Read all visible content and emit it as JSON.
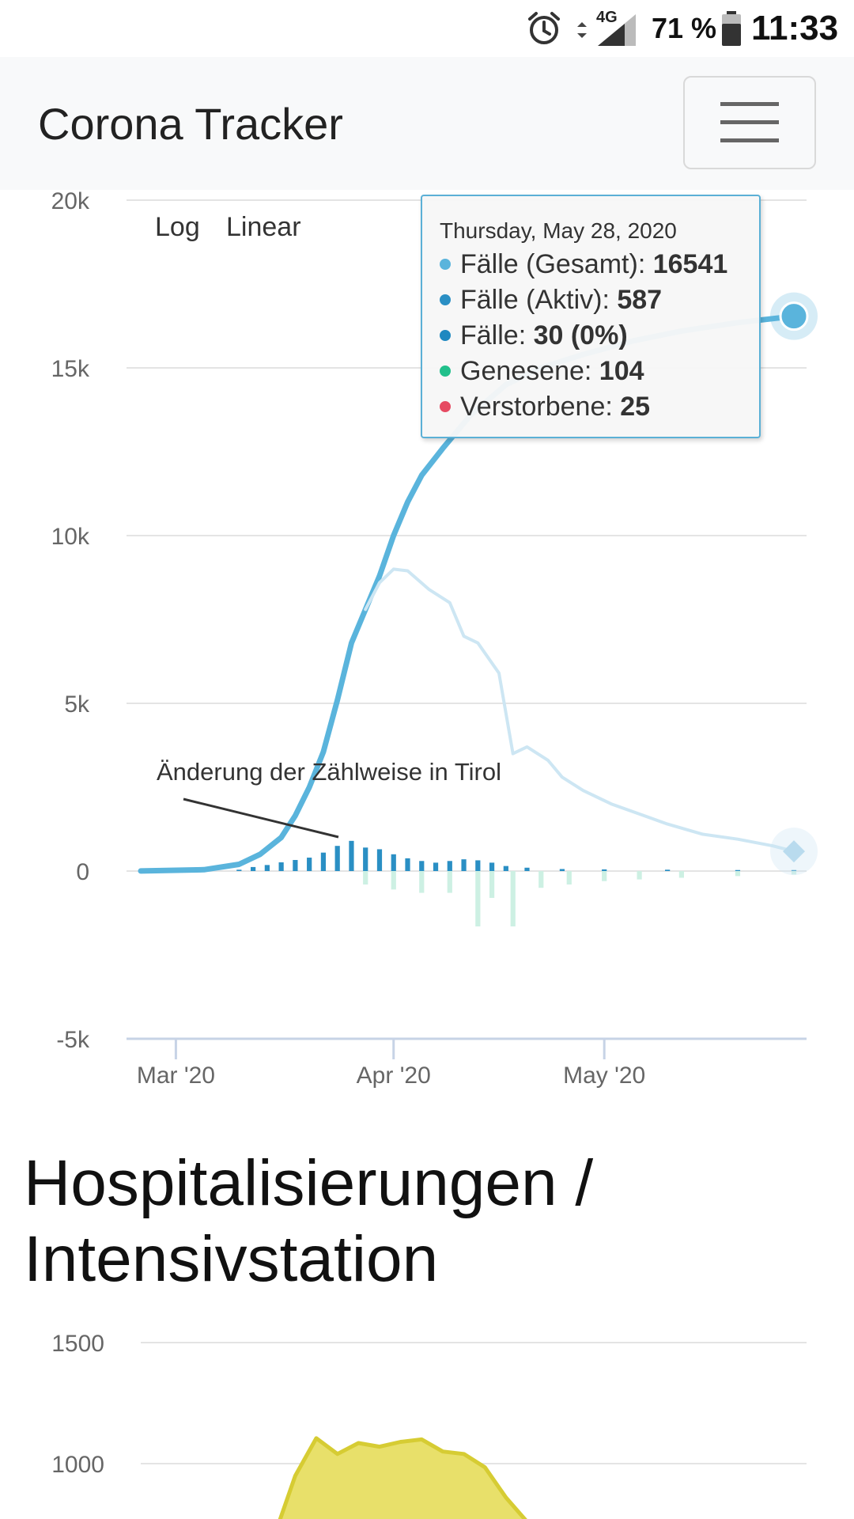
{
  "status_bar": {
    "icons": [
      "alarm-icon",
      "data-arrows-icon",
      "signal-icon",
      "battery-icon"
    ],
    "network": "4G",
    "battery": "71 %",
    "time": "11:33"
  },
  "navbar": {
    "brand": "Corona Tracker",
    "menu_icon": "hamburger-icon"
  },
  "cases_chart": {
    "scale_buttons": [
      "Log",
      "Linear"
    ],
    "y_ticks": [
      "20k",
      "15k",
      "10k",
      "5k",
      "0",
      "-5k"
    ],
    "x_ticks": [
      "Mar '20",
      "Apr '20",
      "May '20"
    ],
    "annotation": "Änderung der Zählweise in Tirol",
    "tooltip": {
      "date": "Thursday, May 28, 2020",
      "rows": [
        {
          "label": "Fälle (Gesamt): ",
          "value": "16541",
          "color": "#5ab4dc"
        },
        {
          "label": "Fälle (Aktiv): ",
          "value": "587",
          "color": "#2a8fc4"
        },
        {
          "label": "Fälle: ",
          "value": "30 (0%)",
          "color": "#1e88c0"
        },
        {
          "label": "Genesene: ",
          "value": "104",
          "color": "#21c08b"
        },
        {
          "label": "Verstorbene: ",
          "value": "25",
          "color": "#e64a62"
        }
      ]
    },
    "colors": {
      "total": "#5ab4dc",
      "active": "#cde6f3",
      "new": "#2a8fc4",
      "recovered_neg": "#cdf0e3"
    },
    "chart_data": {
      "type": "line",
      "x_range": [
        "2020-02-25",
        "2020-05-28"
      ],
      "ylim": [
        -5000,
        20000
      ],
      "series": [
        {
          "name": "Fälle (Gesamt)",
          "type": "line",
          "x": [
            "2020-02-25",
            "2020-03-05",
            "2020-03-10",
            "2020-03-13",
            "2020-03-16",
            "2020-03-18",
            "2020-03-20",
            "2020-03-22",
            "2020-03-24",
            "2020-03-26",
            "2020-03-28",
            "2020-03-30",
            "2020-04-01",
            "2020-04-03",
            "2020-04-05",
            "2020-04-08",
            "2020-04-12",
            "2020-04-17",
            "2020-04-22",
            "2020-04-28",
            "2020-05-05",
            "2020-05-12",
            "2020-05-20",
            "2020-05-28"
          ],
          "y": [
            2,
            40,
            200,
            500,
            1000,
            1650,
            2500,
            3550,
            5100,
            6800,
            7800,
            8800,
            10000,
            11000,
            11800,
            12600,
            13600,
            14500,
            15000,
            15400,
            15800,
            16100,
            16350,
            16541
          ]
        },
        {
          "name": "Fälle (Aktiv)",
          "type": "line",
          "x": [
            "2020-03-28",
            "2020-03-30",
            "2020-04-01",
            "2020-04-03",
            "2020-04-06",
            "2020-04-09",
            "2020-04-11",
            "2020-04-13",
            "2020-04-16",
            "2020-04-18",
            "2020-04-20",
            "2020-04-23",
            "2020-04-25",
            "2020-04-28",
            "2020-05-02",
            "2020-05-06",
            "2020-05-10",
            "2020-05-15",
            "2020-05-20",
            "2020-05-25",
            "2020-05-28"
          ],
          "y": [
            7800,
            8600,
            9000,
            8950,
            8400,
            8000,
            7000,
            6800,
            5900,
            3500,
            3700,
            3300,
            2800,
            2400,
            2000,
            1700,
            1400,
            1100,
            950,
            750,
            587
          ]
        },
        {
          "name": "Fälle",
          "type": "bar",
          "x": [
            "2020-03-10",
            "2020-03-12",
            "2020-03-14",
            "2020-03-16",
            "2020-03-18",
            "2020-03-20",
            "2020-03-22",
            "2020-03-24",
            "2020-03-26",
            "2020-03-28",
            "2020-03-30",
            "2020-04-01",
            "2020-04-03",
            "2020-04-05",
            "2020-04-07",
            "2020-04-09",
            "2020-04-11",
            "2020-04-13",
            "2020-04-15",
            "2020-04-17",
            "2020-04-20",
            "2020-04-25",
            "2020-05-01",
            "2020-05-10",
            "2020-05-20",
            "2020-05-28"
          ],
          "y": [
            40,
            120,
            180,
            260,
            330,
            400,
            550,
            750,
            900,
            700,
            650,
            500,
            380,
            300,
            250,
            300,
            350,
            320,
            250,
            150,
            100,
            60,
            50,
            40,
            30,
            30
          ]
        },
        {
          "name": "Genesene",
          "type": "bar",
          "x": [
            "2020-03-28",
            "2020-04-01",
            "2020-04-05",
            "2020-04-09",
            "2020-04-13",
            "2020-04-15",
            "2020-04-18",
            "2020-04-22",
            "2020-04-26",
            "2020-05-01",
            "2020-05-06",
            "2020-05-12",
            "2020-05-20",
            "2020-05-28"
          ],
          "y": [
            -400,
            -550,
            -650,
            -650,
            -1650,
            -800,
            -1650,
            -500,
            -400,
            -300,
            -250,
            -200,
            -150,
            -104
          ]
        }
      ]
    }
  },
  "section": {
    "title": "Hospitalisierungen / Intensivstation"
  },
  "hospital_chart": {
    "y_ticks": [
      "1500",
      "1000"
    ],
    "colors": {
      "fill": "#e8e06a",
      "line": "#d6cc33"
    },
    "chart_data": {
      "type": "area",
      "ylim": [
        0,
        1500
      ],
      "series": [
        {
          "name": "",
          "x": [
            "2020-03-15",
            "2020-03-18",
            "2020-03-21",
            "2020-03-24",
            "2020-03-27",
            "2020-03-30",
            "2020-04-02",
            "2020-04-05",
            "2020-04-08",
            "2020-04-11",
            "2020-04-14",
            "2020-04-17",
            "2020-04-20"
          ],
          "y": [
            700,
            950,
            1105,
            1040,
            1085,
            1070,
            1090,
            1100,
            1050,
            1040,
            985,
            860,
            760
          ]
        }
      ]
    }
  }
}
